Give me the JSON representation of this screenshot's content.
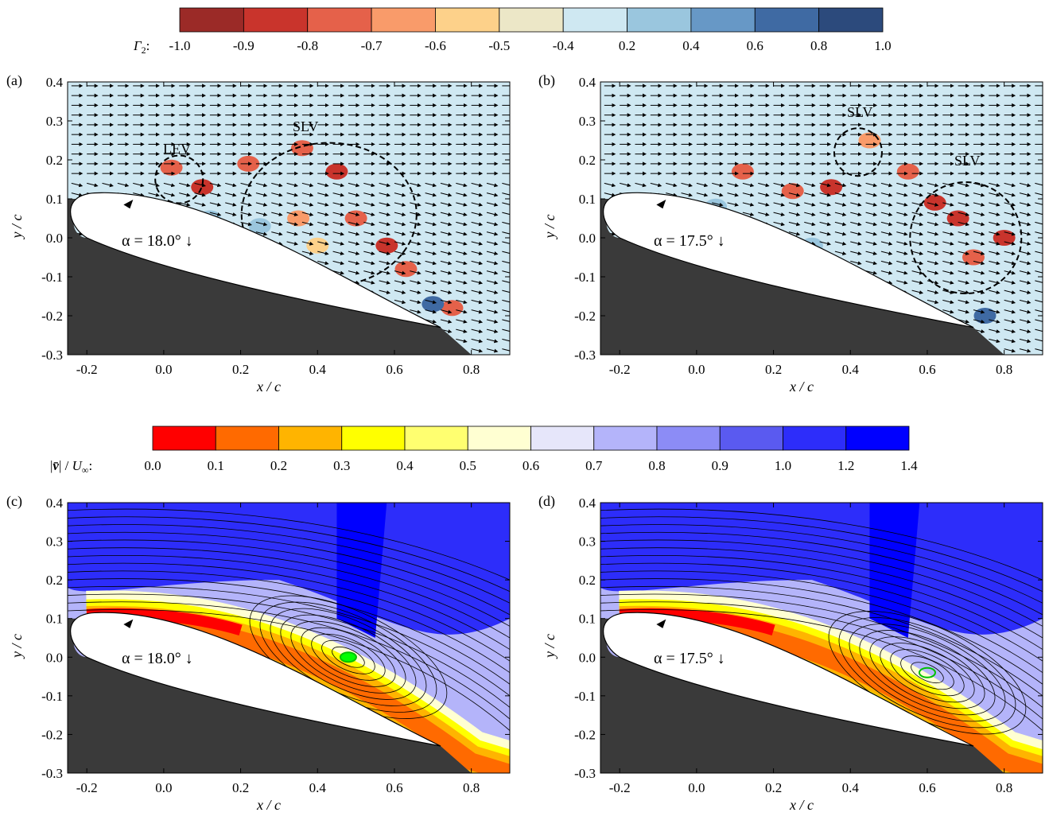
{
  "colorbars": [
    {
      "label": "Γ₂:",
      "label_symbol": "Γ",
      "label_sub": "2",
      "label_colon": ":",
      "ticks": [
        "-1.0",
        "-0.9",
        "-0.8",
        "-0.7",
        "-0.6",
        "-0.5",
        "-0.4",
        "0.2",
        "0.4",
        "0.6",
        "0.8",
        "1.0"
      ],
      "colors": [
        "#9b2a27",
        "#c9342c",
        "#e5614a",
        "#f99b6a",
        "#fdd18a",
        "#ece7c7",
        "#cfe8f2",
        "#9ac6de",
        "#6798c6",
        "#3f6aa3",
        "#2c4a7c"
      ]
    },
    {
      "label": "|v̄| / U∞:",
      "label_parts": [
        "|",
        "v̄",
        "| / ",
        "U",
        "∞",
        ":"
      ],
      "ticks": [
        "0.0",
        "0.1",
        "0.2",
        "0.3",
        "0.4",
        "0.5",
        "0.6",
        "0.7",
        "0.8",
        "0.9",
        "1.0",
        "1.2",
        "1.4"
      ],
      "colors": [
        "#ff0000",
        "#ff6a00",
        "#ffb400",
        "#ffff00",
        "#ffff70",
        "#ffffd2",
        "#e6e6fa",
        "#b4b4fa",
        "#8c8cf6",
        "#5a5af0",
        "#2d2dfa",
        "#0000ff"
      ]
    }
  ],
  "panels": [
    {
      "id": "a",
      "label": "(a)",
      "alpha": "α = 18.0° ↓",
      "annotations": [
        "LEV",
        "SLV"
      ]
    },
    {
      "id": "b",
      "label": "(b)",
      "alpha": "α = 17.5°  ↓",
      "annotations": [
        "SLV",
        "SLV"
      ]
    },
    {
      "id": "c",
      "label": "(c)",
      "alpha": "α = 18.0° ↓",
      "annotations": []
    },
    {
      "id": "d",
      "label": "(d)",
      "alpha": "α = 17.5°  ↓",
      "annotations": []
    }
  ],
  "axes": {
    "xlabel": "x / c",
    "ylabel": "y / c",
    "x_ticks": [
      "-0.2",
      "0.0",
      "0.2",
      "0.4",
      "0.6",
      "0.8"
    ],
    "y_ticks": [
      "0.4",
      "0.3",
      "0.2",
      "0.1",
      "0.0",
      "-0.1",
      "-0.2",
      "-0.3"
    ]
  },
  "chart_data": [
    {
      "type": "heatmap",
      "panel": "a",
      "quantity": "Γ2",
      "xlim": [
        -0.25,
        0.9
      ],
      "ylim": [
        -0.3,
        0.4
      ],
      "alpha_deg": 18.0,
      "vortices": [
        {
          "name": "LEV",
          "x": 0.04,
          "y": 0.15
        },
        {
          "name": "SLV",
          "x": 0.43,
          "y": 0.06
        }
      ]
    },
    {
      "type": "heatmap",
      "panel": "b",
      "quantity": "Γ2",
      "xlim": [
        -0.25,
        0.9
      ],
      "ylim": [
        -0.3,
        0.4
      ],
      "alpha_deg": 17.5,
      "vortices": [
        {
          "name": "SLV",
          "x": 0.42,
          "y": 0.22
        },
        {
          "name": "SLV",
          "x": 0.7,
          "y": 0.0
        }
      ]
    },
    {
      "type": "heatmap",
      "panel": "c",
      "quantity": "|v| / U∞",
      "xlim": [
        -0.25,
        0.9
      ],
      "ylim": [
        -0.3,
        0.4
      ],
      "alpha_deg": 18.0,
      "vortex_core": {
        "x": 0.48,
        "y": 0.0
      }
    },
    {
      "type": "heatmap",
      "panel": "d",
      "quantity": "|v| / U∞",
      "xlim": [
        -0.25,
        0.9
      ],
      "ylim": [
        -0.3,
        0.4
      ],
      "alpha_deg": 17.5,
      "vortex_core": {
        "x": 0.6,
        "y": -0.04
      }
    }
  ]
}
